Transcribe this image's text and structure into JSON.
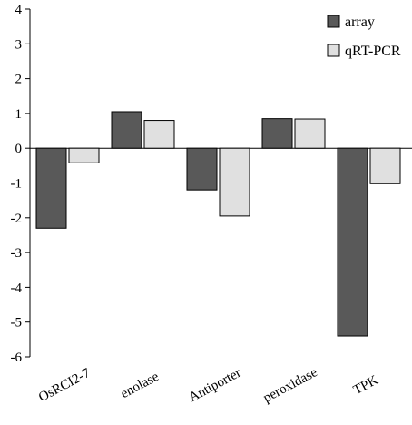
{
  "chart_data": {
    "type": "bar",
    "title": "",
    "xlabel": "",
    "ylabel": "",
    "categories": [
      "OsRCI2-7",
      "enolase",
      "Antiporter",
      "peroxidase",
      "TPK"
    ],
    "series": [
      {
        "name": "array",
        "values": [
          -2.3,
          1.05,
          -1.2,
          0.85,
          -5.4
        ],
        "color": "#595959"
      },
      {
        "name": "qRT-PCR",
        "values": [
          -0.42,
          0.8,
          -1.95,
          0.84,
          -1.02
        ],
        "color": "#e0e0e0"
      }
    ],
    "ylim": [
      -6,
      4
    ],
    "yticks": [
      "-6",
      "-5",
      "-4",
      "-3",
      "-2",
      "-1",
      "0",
      "1",
      "2",
      "3",
      "4"
    ],
    "grid": false,
    "legend_position": "top-right"
  }
}
